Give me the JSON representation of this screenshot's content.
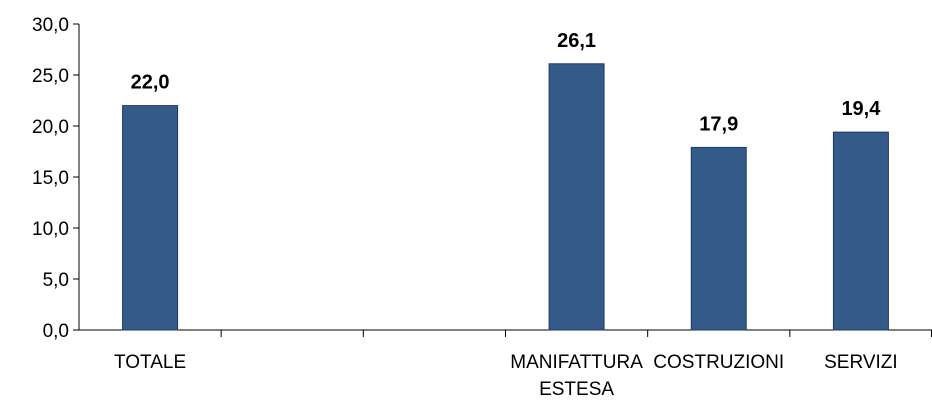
{
  "chart_data": {
    "type": "bar",
    "categories": [
      "TOTALE",
      "",
      "",
      "MANIFATTURA ESTESA",
      "COSTRUZIONI",
      "SERVIZI"
    ],
    "category_labels": [
      [
        "TOTALE"
      ],
      [],
      [],
      [
        "MANIFATTURA",
        "ESTESA"
      ],
      [
        "COSTRUZIONI"
      ],
      [
        "SERVIZI"
      ]
    ],
    "values": [
      22.0,
      null,
      null,
      26.1,
      17.9,
      19.4
    ],
    "data_labels": [
      "22,0",
      "",
      "",
      "26,1",
      "17,9",
      "19,4"
    ],
    "y_ticks": [
      "0,0",
      "5,0",
      "10,0",
      "15,0",
      "20,0",
      "25,0",
      "30,0"
    ],
    "ylim": [
      0,
      30
    ],
    "title": "",
    "xlabel": "",
    "ylabel": "",
    "grid": false,
    "legend": "none",
    "colors": {
      "bar_fill": "#345A8A",
      "bar_stroke": "#1F3A60",
      "axis": "#000000"
    }
  }
}
